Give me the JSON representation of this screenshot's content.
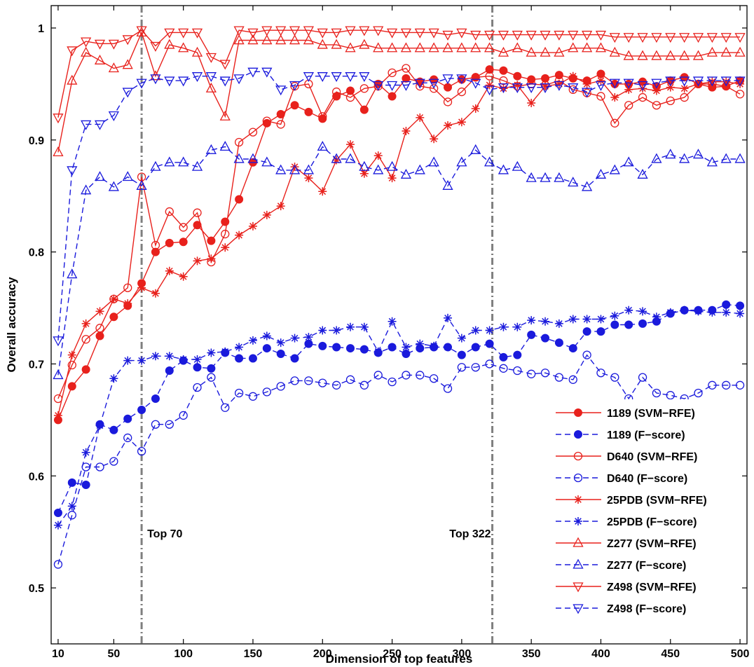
{
  "chart_data": {
    "type": "line",
    "title": "",
    "xlabel": "Dimension of top features",
    "ylabel": "Overall accuracy",
    "xlim": [
      5,
      505
    ],
    "ylim": [
      0.45,
      1.02
    ],
    "xticks": [
      10,
      50,
      100,
      150,
      200,
      250,
      300,
      350,
      400,
      450,
      500
    ],
    "yticks": [
      0.5,
      0.6,
      0.7,
      0.8,
      0.9,
      1
    ],
    "ytick_labels": [
      "0.5",
      "0.6",
      "0.7",
      "0.8",
      "0.9",
      "1"
    ],
    "grid": false,
    "legend_position": "bottom-right",
    "vlines": [
      {
        "x": 70,
        "label": "Top 70"
      },
      {
        "x": 322,
        "label": "Top 322"
      }
    ],
    "x": [
      10,
      20,
      30,
      40,
      50,
      60,
      70,
      80,
      90,
      100,
      110,
      120,
      130,
      140,
      150,
      160,
      170,
      180,
      190,
      200,
      210,
      220,
      230,
      240,
      250,
      260,
      270,
      280,
      290,
      300,
      310,
      320,
      330,
      340,
      350,
      360,
      370,
      380,
      390,
      400,
      410,
      420,
      430,
      440,
      450,
      460,
      470,
      480,
      490,
      500
    ],
    "series": [
      {
        "name": "1189 (SVM−RFE)",
        "color": "#e8211c",
        "dash": "solid",
        "marker": "dot",
        "values": [
          0.65,
          0.68,
          0.695,
          0.725,
          0.742,
          0.752,
          0.772,
          0.8,
          0.808,
          0.809,
          0.824,
          0.81,
          0.827,
          0.847,
          0.88,
          0.915,
          0.923,
          0.931,
          0.925,
          0.919,
          0.939,
          0.944,
          0.927,
          0.95,
          0.939,
          0.955,
          0.952,
          0.954,
          0.947,
          0.954,
          0.956,
          0.963,
          0.962,
          0.957,
          0.954,
          0.955,
          0.958,
          0.955,
          0.953,
          0.959,
          0.95,
          0.95,
          0.952,
          0.948,
          0.953,
          0.956,
          0.95,
          0.947,
          0.948,
          0.953
        ]
      },
      {
        "name": "1189 (F−score)",
        "color": "#1a1adc",
        "dash": "dashed",
        "marker": "dot",
        "values": [
          0.567,
          0.594,
          0.592,
          0.646,
          0.641,
          0.651,
          0.659,
          0.669,
          0.694,
          0.703,
          0.697,
          0.696,
          0.71,
          0.705,
          0.705,
          0.714,
          0.709,
          0.705,
          0.718,
          0.716,
          0.715,
          0.714,
          0.713,
          0.71,
          0.715,
          0.709,
          0.714,
          0.715,
          0.715,
          0.708,
          0.715,
          0.718,
          0.706,
          0.708,
          0.726,
          0.723,
          0.719,
          0.714,
          0.729,
          0.729,
          0.735,
          0.735,
          0.736,
          0.738,
          0.745,
          0.748,
          0.748,
          0.748,
          0.753,
          0.752
        ]
      },
      {
        "name": "D640 (SVM−RFE)",
        "color": "#e8211c",
        "dash": "solid",
        "marker": "circle",
        "values": [
          0.669,
          0.699,
          0.722,
          0.732,
          0.758,
          0.768,
          0.867,
          0.806,
          0.836,
          0.822,
          0.835,
          0.791,
          0.816,
          0.898,
          0.907,
          0.917,
          0.914,
          0.948,
          0.95,
          0.921,
          0.943,
          0.938,
          0.946,
          0.948,
          0.96,
          0.964,
          0.948,
          0.946,
          0.934,
          0.943,
          0.956,
          0.957,
          0.953,
          0.948,
          0.95,
          0.949,
          0.953,
          0.945,
          0.942,
          0.939,
          0.915,
          0.931,
          0.938,
          0.931,
          0.935,
          0.938,
          0.95,
          0.95,
          0.948,
          0.941
        ]
      },
      {
        "name": "D640 (F−score)",
        "color": "#1a1adc",
        "dash": "dashed",
        "marker": "circle",
        "values": [
          0.521,
          0.565,
          0.608,
          0.608,
          0.613,
          0.634,
          0.622,
          0.646,
          0.646,
          0.654,
          0.679,
          0.688,
          0.661,
          0.674,
          0.671,
          0.675,
          0.68,
          0.685,
          0.685,
          0.683,
          0.681,
          0.686,
          0.681,
          0.69,
          0.684,
          0.69,
          0.69,
          0.687,
          0.678,
          0.697,
          0.697,
          0.7,
          0.696,
          0.694,
          0.691,
          0.692,
          0.688,
          0.686,
          0.708,
          0.692,
          0.688,
          0.669,
          0.688,
          0.674,
          0.672,
          0.669,
          0.674,
          0.681,
          0.681,
          0.681
        ]
      },
      {
        "name": "25PDB (SVM−RFE)",
        "color": "#e8211c",
        "dash": "solid",
        "marker": "asterisk",
        "values": [
          0.654,
          0.708,
          0.736,
          0.747,
          0.758,
          0.754,
          0.768,
          0.763,
          0.783,
          0.778,
          0.792,
          0.794,
          0.804,
          0.815,
          0.823,
          0.833,
          0.841,
          0.876,
          0.866,
          0.854,
          0.882,
          0.896,
          0.87,
          0.886,
          0.866,
          0.908,
          0.92,
          0.901,
          0.913,
          0.916,
          0.928,
          0.949,
          0.946,
          0.949,
          0.933,
          0.948,
          0.95,
          0.957,
          0.95,
          0.953,
          0.938,
          0.945,
          0.946,
          0.944,
          0.947,
          0.946,
          0.95,
          0.952,
          0.952,
          0.95
        ]
      },
      {
        "name": "25PDB (F−score)",
        "color": "#1a1adc",
        "dash": "dashed",
        "marker": "asterisk",
        "values": [
          0.556,
          0.573,
          0.621,
          0.645,
          0.687,
          0.703,
          0.703,
          0.707,
          0.707,
          0.704,
          0.704,
          0.71,
          0.711,
          0.715,
          0.721,
          0.725,
          0.719,
          0.723,
          0.724,
          0.73,
          0.73,
          0.733,
          0.733,
          0.711,
          0.738,
          0.715,
          0.718,
          0.716,
          0.741,
          0.723,
          0.73,
          0.73,
          0.733,
          0.733,
          0.739,
          0.738,
          0.736,
          0.74,
          0.74,
          0.74,
          0.743,
          0.748,
          0.747,
          0.742,
          0.746,
          0.748,
          0.747,
          0.746,
          0.746,
          0.745
        ]
      },
      {
        "name": "Z277 (SVM−RFE)",
        "color": "#e8211c",
        "dash": "solid",
        "marker": "triangle-up",
        "values": [
          0.889,
          0.953,
          0.978,
          0.971,
          0.964,
          0.967,
          0.996,
          0.957,
          0.985,
          0.982,
          0.978,
          0.946,
          0.921,
          0.989,
          0.989,
          0.989,
          0.989,
          0.989,
          0.989,
          0.985,
          0.985,
          0.982,
          0.985,
          0.982,
          0.982,
          0.982,
          0.982,
          0.982,
          0.982,
          0.982,
          0.982,
          0.982,
          0.978,
          0.982,
          0.978,
          0.978,
          0.978,
          0.982,
          0.982,
          0.982,
          0.978,
          0.975,
          0.975,
          0.975,
          0.975,
          0.975,
          0.975,
          0.978,
          0.978,
          0.978
        ]
      },
      {
        "name": "Z277 (F−score)",
        "color": "#1a1adc",
        "dash": "dashed",
        "marker": "triangle-up",
        "values": [
          0.69,
          0.78,
          0.855,
          0.867,
          0.858,
          0.867,
          0.859,
          0.876,
          0.88,
          0.88,
          0.876,
          0.891,
          0.894,
          0.883,
          0.883,
          0.88,
          0.873,
          0.873,
          0.873,
          0.894,
          0.883,
          0.883,
          0.876,
          0.873,
          0.876,
          0.869,
          0.873,
          0.88,
          0.859,
          0.88,
          0.891,
          0.88,
          0.873,
          0.876,
          0.866,
          0.866,
          0.866,
          0.862,
          0.858,
          0.869,
          0.873,
          0.88,
          0.869,
          0.883,
          0.887,
          0.883,
          0.887,
          0.88,
          0.883,
          0.883
        ]
      },
      {
        "name": "Z498 (SVM−RFE)",
        "color": "#e8211c",
        "dash": "solid",
        "marker": "triangle-down",
        "values": [
          0.92,
          0.98,
          0.988,
          0.986,
          0.986,
          0.99,
          0.998,
          0.984,
          0.996,
          0.996,
          0.996,
          0.974,
          0.968,
          0.998,
          0.996,
          0.998,
          0.998,
          0.998,
          0.998,
          0.996,
          0.996,
          0.998,
          0.998,
          0.998,
          0.996,
          0.996,
          0.996,
          0.996,
          0.994,
          0.996,
          0.994,
          0.994,
          0.994,
          0.994,
          0.994,
          0.994,
          0.994,
          0.994,
          0.994,
          0.994,
          0.992,
          0.992,
          0.992,
          0.992,
          0.992,
          0.992,
          0.992,
          0.992,
          0.992,
          0.992
        ]
      },
      {
        "name": "Z498 (F−score)",
        "color": "#1a1adc",
        "dash": "dashed",
        "marker": "triangle-down",
        "values": [
          0.721,
          0.873,
          0.914,
          0.914,
          0.922,
          0.943,
          0.951,
          0.955,
          0.953,
          0.953,
          0.957,
          0.957,
          0.953,
          0.955,
          0.961,
          0.961,
          0.945,
          0.949,
          0.957,
          0.957,
          0.957,
          0.957,
          0.957,
          0.949,
          0.949,
          0.949,
          0.951,
          0.951,
          0.955,
          0.955,
          0.951,
          0.945,
          0.947,
          0.947,
          0.947,
          0.947,
          0.949,
          0.947,
          0.943,
          0.949,
          0.951,
          0.951,
          0.949,
          0.951,
          0.953,
          0.953,
          0.953,
          0.953,
          0.953,
          0.953
        ]
      }
    ]
  }
}
